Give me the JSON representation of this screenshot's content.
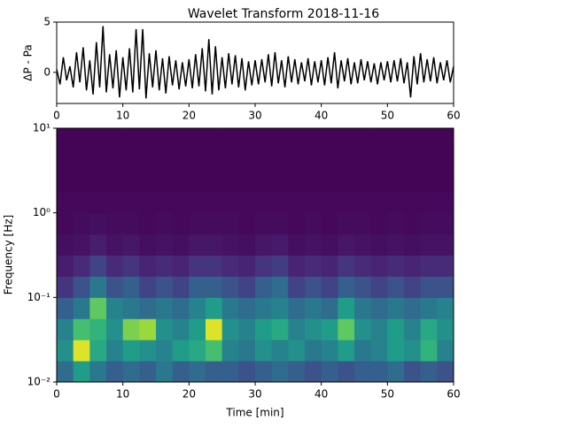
{
  "chart_data": [
    {
      "type": "line",
      "title": "Wavelet Transform 2018-11-16",
      "ylabel": "ΔP - Pa",
      "color": "#000000",
      "x": [
        0,
        0.5,
        1,
        1.5,
        2,
        2.5,
        3,
        3.5,
        4,
        4.5,
        5,
        5.5,
        6,
        6.5,
        7,
        7.5,
        8,
        8.5,
        9,
        9.5,
        10,
        10.5,
        11,
        11.5,
        12,
        12.5,
        13,
        13.5,
        14,
        14.5,
        15,
        15.5,
        16,
        16.5,
        17,
        17.5,
        18,
        18.5,
        19,
        19.5,
        20,
        20.5,
        21,
        21.5,
        22,
        22.5,
        23,
        23.5,
        24,
        24.5,
        25,
        25.5,
        26,
        26.5,
        27,
        27.5,
        28,
        28.5,
        29,
        29.5,
        30,
        30.5,
        31,
        31.5,
        32,
        32.5,
        33,
        33.5,
        34,
        34.5,
        35,
        35.5,
        36,
        36.5,
        37,
        37.5,
        38,
        38.5,
        39,
        39.5,
        40,
        40.5,
        41,
        41.5,
        42,
        42.5,
        43,
        43.5,
        44,
        44.5,
        45,
        45.5,
        46,
        46.5,
        47,
        47.5,
        48,
        48.5,
        49,
        49.5,
        50,
        50.5,
        51,
        51.5,
        52,
        52.5,
        53,
        53.5,
        54,
        54.5,
        55,
        55.5,
        56,
        56.5,
        57,
        57.5,
        58,
        58.5,
        59,
        59.5,
        60
      ],
      "values": [
        0.3,
        -1.2,
        1.5,
        -0.8,
        0.6,
        -1.5,
        2.0,
        -1.0,
        2.5,
        -1.8,
        1.2,
        -2.2,
        3.0,
        -1.5,
        4.6,
        -2.0,
        1.8,
        -1.6,
        2.2,
        -2.5,
        1.5,
        -1.8,
        2.4,
        -2.0,
        4.3,
        -1.7,
        4.3,
        -2.6,
        1.9,
        -1.5,
        2.2,
        -1.8,
        1.4,
        -2.1,
        1.6,
        -1.3,
        1.2,
        -1.7,
        1.0,
        -1.4,
        1.3,
        -1.6,
        1.8,
        -1.4,
        2.4,
        -1.9,
        3.3,
        -2.2,
        2.6,
        -1.8,
        1.5,
        -1.6,
        1.9,
        -1.2,
        1.7,
        -1.5,
        1.4,
        -1.8,
        1.1,
        -1.3,
        1.2,
        -1.2,
        1.3,
        -1.0,
        1.8,
        -1.4,
        2.0,
        -1.1,
        1.2,
        -1.5,
        1.6,
        -1.0,
        1.3,
        -1.2,
        1.0,
        -0.9,
        1.4,
        -1.3,
        1.1,
        -1.0,
        1.2,
        -1.3,
        1.5,
        -1.1,
        2.0,
        -1.6,
        1.2,
        -0.9,
        1.4,
        -1.2,
        1.0,
        -1.1,
        1.3,
        -0.8,
        1.1,
        -1.0,
        0.9,
        -1.2,
        1.0,
        -0.8,
        1.1,
        -1.0,
        1.2,
        -0.9,
        1.4,
        -1.1,
        1.0,
        -2.5,
        1.6,
        -1.2,
        1.9,
        -1.0,
        1.3,
        -0.9,
        1.5,
        -1.1,
        1.0,
        -0.8,
        1.2,
        -1.0,
        0.6
      ],
      "xlim": [
        0,
        60
      ],
      "xticks": [
        0,
        10,
        20,
        30,
        40,
        50,
        60
      ],
      "ylim": [
        -3.1,
        5
      ],
      "yticks": [
        0,
        5
      ]
    },
    {
      "type": "heatmap",
      "xlabel": "Time  [min]",
      "ylabel": "Frequency [Hz]",
      "colormap": "viridis",
      "clim": [
        0,
        1
      ],
      "yscale": "log",
      "xbins": [
        0,
        2.5,
        5,
        7.5,
        10,
        12.5,
        15,
        17.5,
        20,
        22.5,
        25,
        27.5,
        30,
        32.5,
        35,
        37.5,
        40,
        42.5,
        45,
        47.5,
        50,
        52.5,
        55,
        57.5,
        60
      ],
      "ybins": [
        0.01,
        0.0178,
        0.0316,
        0.0562,
        0.1,
        0.178,
        0.316,
        0.562,
        1,
        1.78,
        3.16,
        5.62,
        10
      ],
      "values": [
        [
          0.35,
          0.55,
          0.4,
          0.3,
          0.35,
          0.3,
          0.4,
          0.3,
          0.35,
          0.3,
          0.3,
          0.25,
          0.3,
          0.35,
          0.3,
          0.25,
          0.3,
          0.25,
          0.3,
          0.3,
          0.35,
          0.25,
          0.3,
          0.25
        ],
        [
          0.5,
          0.95,
          0.6,
          0.45,
          0.55,
          0.5,
          0.45,
          0.55,
          0.6,
          0.7,
          0.45,
          0.4,
          0.5,
          0.45,
          0.5,
          0.4,
          0.45,
          0.55,
          0.4,
          0.45,
          0.55,
          0.5,
          0.65,
          0.45
        ],
        [
          0.45,
          0.7,
          0.65,
          0.5,
          0.8,
          0.85,
          0.5,
          0.45,
          0.55,
          0.95,
          0.5,
          0.45,
          0.55,
          0.6,
          0.45,
          0.5,
          0.55,
          0.75,
          0.5,
          0.45,
          0.55,
          0.45,
          0.6,
          0.5
        ],
        [
          0.3,
          0.4,
          0.75,
          0.45,
          0.4,
          0.35,
          0.4,
          0.35,
          0.45,
          0.55,
          0.4,
          0.35,
          0.4,
          0.45,
          0.35,
          0.4,
          0.35,
          0.55,
          0.4,
          0.35,
          0.4,
          0.35,
          0.4,
          0.45
        ],
        [
          0.15,
          0.25,
          0.4,
          0.25,
          0.3,
          0.2,
          0.25,
          0.2,
          0.3,
          0.3,
          0.25,
          0.2,
          0.3,
          0.35,
          0.2,
          0.25,
          0.2,
          0.3,
          0.25,
          0.2,
          0.25,
          0.2,
          0.25,
          0.25
        ],
        [
          0.08,
          0.12,
          0.2,
          0.12,
          0.15,
          0.1,
          0.12,
          0.1,
          0.15,
          0.15,
          0.12,
          0.1,
          0.15,
          0.18,
          0.1,
          0.12,
          0.1,
          0.15,
          0.12,
          0.1,
          0.12,
          0.1,
          0.12,
          0.12
        ],
        [
          0.04,
          0.05,
          0.08,
          0.05,
          0.06,
          0.04,
          0.05,
          0.04,
          0.06,
          0.06,
          0.05,
          0.04,
          0.06,
          0.07,
          0.04,
          0.05,
          0.04,
          0.06,
          0.05,
          0.04,
          0.05,
          0.04,
          0.05,
          0.05
        ],
        [
          0.02,
          0.03,
          0.04,
          0.03,
          0.03,
          0.02,
          0.03,
          0.02,
          0.03,
          0.03,
          0.03,
          0.02,
          0.03,
          0.03,
          0.02,
          0.03,
          0.02,
          0.03,
          0.03,
          0.02,
          0.03,
          0.02,
          0.03,
          0.03
        ],
        [
          0.02,
          0.02,
          0.02,
          0.02,
          0.02,
          0.02,
          0.02,
          0.02,
          0.02,
          0.02,
          0.02,
          0.02,
          0.02,
          0.02,
          0.02,
          0.02,
          0.02,
          0.02,
          0.02,
          0.02,
          0.02,
          0.02,
          0.02,
          0.02
        ],
        [
          0.01,
          0.01,
          0.01,
          0.01,
          0.01,
          0.01,
          0.01,
          0.01,
          0.01,
          0.01,
          0.01,
          0.01,
          0.01,
          0.01,
          0.01,
          0.01,
          0.01,
          0.01,
          0.01,
          0.01,
          0.01,
          0.01,
          0.01,
          0.01
        ],
        [
          0.01,
          0.01,
          0.01,
          0.01,
          0.01,
          0.01,
          0.01,
          0.01,
          0.01,
          0.01,
          0.01,
          0.01,
          0.01,
          0.01,
          0.01,
          0.01,
          0.01,
          0.01,
          0.01,
          0.01,
          0.01,
          0.01,
          0.01,
          0.01
        ],
        [
          0.01,
          0.01,
          0.01,
          0.01,
          0.01,
          0.01,
          0.01,
          0.01,
          0.01,
          0.01,
          0.01,
          0.01,
          0.01,
          0.01,
          0.01,
          0.01,
          0.01,
          0.01,
          0.01,
          0.01,
          0.01,
          0.01,
          0.01,
          0.01
        ]
      ],
      "xlim": [
        0,
        60
      ],
      "xticks": [
        0,
        10,
        20,
        30,
        40,
        50,
        60
      ],
      "ylim": [
        0.01,
        10
      ],
      "yticks": [
        {
          "value": 0.01,
          "label": "10⁻²"
        },
        {
          "value": 0.1,
          "label": "10⁻¹"
        },
        {
          "value": 1,
          "label": "10⁰"
        },
        {
          "value": 10,
          "label": "10¹"
        }
      ]
    }
  ]
}
